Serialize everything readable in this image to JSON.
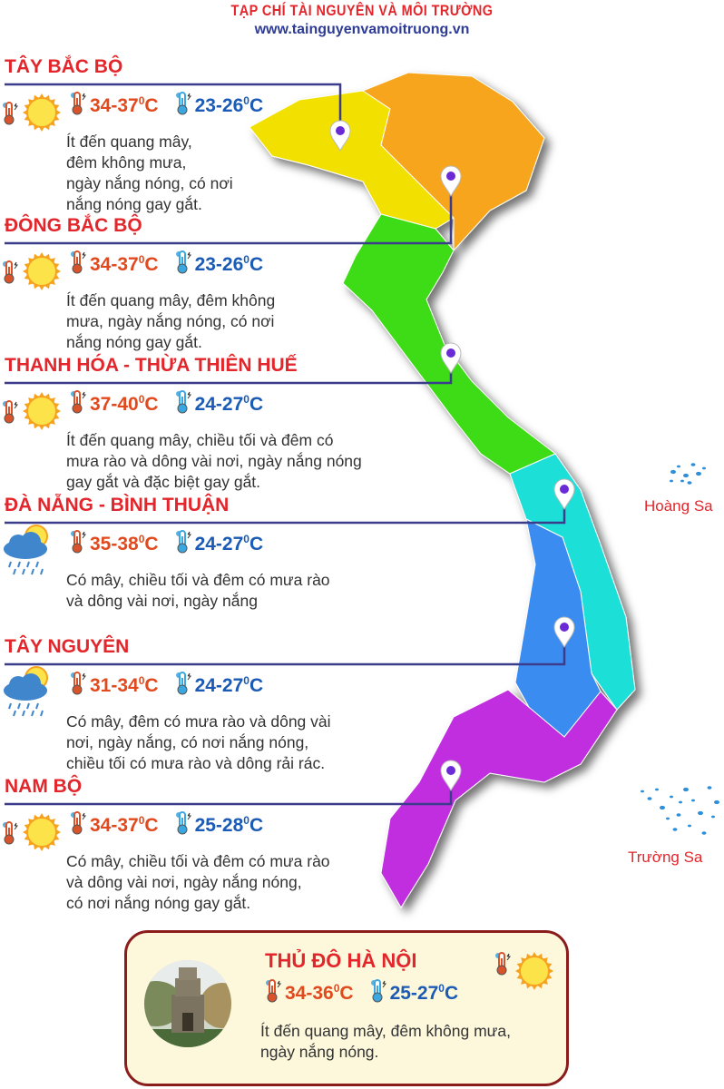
{
  "header": {
    "title": "TẠP CHÍ TÀI NGUYÊN VÀ MÔI TRƯỜNG",
    "website": "www.tainguyenvamoitruong.vn"
  },
  "colors": {
    "title_red": "#e3262b",
    "hot": "#e04a1e",
    "cold": "#1b5bb5",
    "line": "#3c3c8c",
    "tay_bac": "#f2e100",
    "dong_bac": "#f7a51e",
    "bac_trung_bo": "#3ddc12",
    "nam_trung_bo": "#1fe0d8",
    "tay_nguyen": "#3a8cf0",
    "nam_bo": "#c02ee0"
  },
  "regions": [
    {
      "name": "TÂY BẮC BỘ",
      "icon": "sun-icon",
      "max": "34-37",
      "min": "23-26",
      "unit": "C",
      "desc": [
        "Ít đến quang mây,",
        "đêm không mưa,",
        "ngày nắng nóng, có nơi",
        "nắng nóng gay gắt."
      ]
    },
    {
      "name": "ĐÔNG BẮC BỘ",
      "icon": "sun-icon",
      "max": "34-37",
      "min": "23-26",
      "unit": "C",
      "desc": [
        "Ít đến quang mây, đêm không",
        "mưa, ngày nắng nóng, có nơi",
        "nắng nóng gay gắt."
      ]
    },
    {
      "name": "THANH HÓA - THỪA THIÊN HUẾ",
      "icon": "sun-icon",
      "max": "37-40",
      "min": "24-27",
      "unit": "C",
      "desc": [
        "Ít đến quang mây, chiều tối và đêm có",
        "mưa rào và dông vài nơi, ngày nắng nóng",
        "gay gắt và đặc biệt gay gắt."
      ]
    },
    {
      "name": "ĐÀ NẴNG - BÌNH THUẬN",
      "icon": "sun-cloud-rain-icon",
      "max": "35-38",
      "min": "24-27",
      "unit": "C",
      "desc": [
        "Có mây, chiều tối và đêm có mưa rào",
        "và dông vài nơi, ngày nắng"
      ]
    },
    {
      "name": "TÂY NGUYÊN",
      "icon": "sun-cloud-rain-icon",
      "max": "31-34",
      "min": "24-27",
      "unit": "C",
      "desc": [
        "Có mây, đêm có mưa rào và dông vài",
        "nơi, ngày nắng, có nơi nắng nóng,",
        "chiều tối có mưa rào và dông rải rác."
      ]
    },
    {
      "name": "NAM BỘ",
      "icon": "sun-icon",
      "max": "34-37",
      "min": "25-28",
      "unit": "C",
      "desc": [
        "Có mây, chiều tối và đêm có mưa rào",
        "và dông vài nơi, ngày nắng nóng,",
        "có nơi nắng nóng gay gắt."
      ]
    }
  ],
  "islands": {
    "hoang_sa": "Hoàng Sa",
    "truong_sa": "Trường Sa"
  },
  "hanoi": {
    "name": "THỦ ĐÔ HÀ NỘI",
    "icon": "sun-icon",
    "max": "34-36",
    "min": "25-27",
    "unit": "C",
    "desc": [
      "Ít đến quang mây, đêm không mưa,",
      "ngày nắng nóng."
    ]
  }
}
